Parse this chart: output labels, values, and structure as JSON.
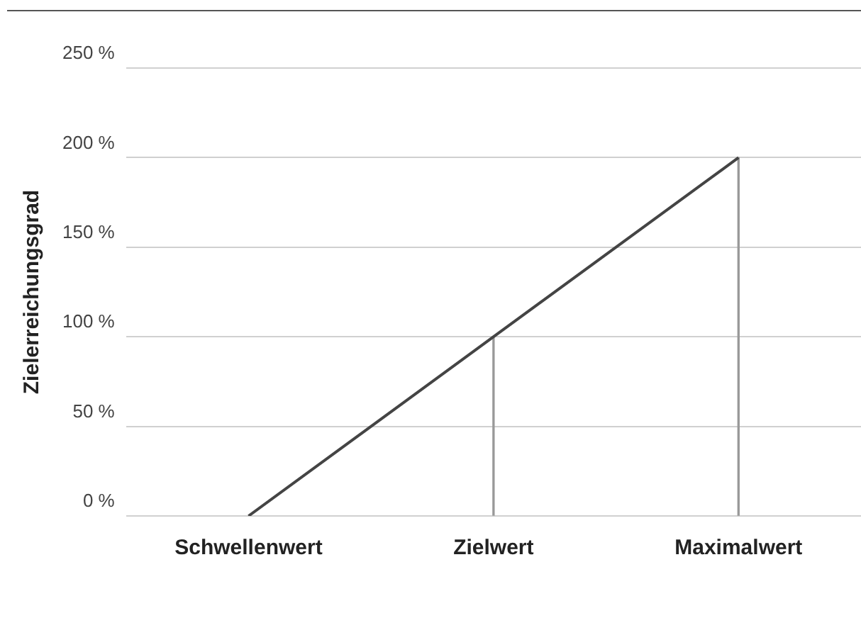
{
  "chart_data": {
    "type": "line",
    "ylabel": "Zielerreichungsgrad",
    "categories": [
      "Schwellenwert",
      "Zielwert",
      "Maximalwert"
    ],
    "series": [
      {
        "color": "#444444",
        "values": [
          0,
          100,
          200
        ]
      },
      {
        "type": "bar",
        "color": "#999999",
        "values": [
          null,
          100,
          200
        ]
      }
    ],
    "ylim": [
      0,
      250
    ],
    "yticks": [
      {
        "value": 0,
        "label": "0 %"
      },
      {
        "value": 50,
        "label": "50 %"
      },
      {
        "value": 100,
        "label": "100 %"
      },
      {
        "value": 150,
        "label": "150 %"
      },
      {
        "value": 200,
        "label": "200 %"
      },
      {
        "value": 250,
        "label": "250 %"
      }
    ],
    "grid": "y",
    "legend": false,
    "marker": "none",
    "line_style": "solid"
  }
}
